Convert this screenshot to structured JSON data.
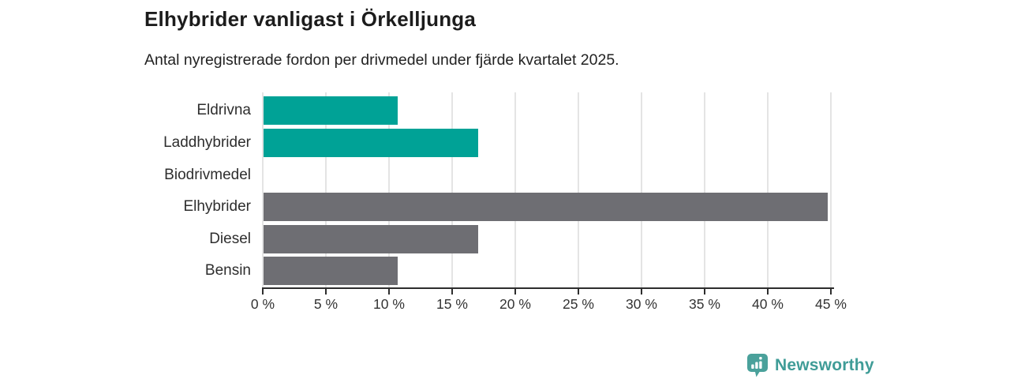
{
  "chart_data": {
    "type": "bar",
    "orientation": "horizontal",
    "title": "Elhybrider vanligast i Örkelljunga",
    "subtitle": "Antal nyregistrerade fordon per drivmedel under fjärde kvartalet 2025.",
    "categories": [
      "Eldrivna",
      "Laddhybrider",
      "Biodrivmedel",
      "Elhybrider",
      "Diesel",
      "Bensin"
    ],
    "values": [
      10.6,
      17,
      0,
      44.7,
      17,
      10.6
    ],
    "unit": "%",
    "bar_colors": [
      "#00a296",
      "#00a296",
      "#00a296",
      "#6e6e73",
      "#6e6e73",
      "#6e6e73"
    ],
    "xlabel": "",
    "ylabel": "",
    "xlim": [
      0,
      45
    ],
    "xtick_step": 5,
    "xtick_labels": [
      "0 %",
      "5 %",
      "10 %",
      "15 %",
      "20 %",
      "25 %",
      "30 %",
      "35 %",
      "40 %",
      "45 %"
    ],
    "grid": true,
    "legend": false
  },
  "colors": {
    "accent_teal": "#00a296",
    "bar_gray": "#6e6e73",
    "gridline": "#e4e4e4",
    "axis": "#2e2e2e",
    "logo_teal": "#4aa19b",
    "wordmark_teal": "#3f9c97"
  },
  "footer": {
    "brand": "Newsworthy"
  }
}
